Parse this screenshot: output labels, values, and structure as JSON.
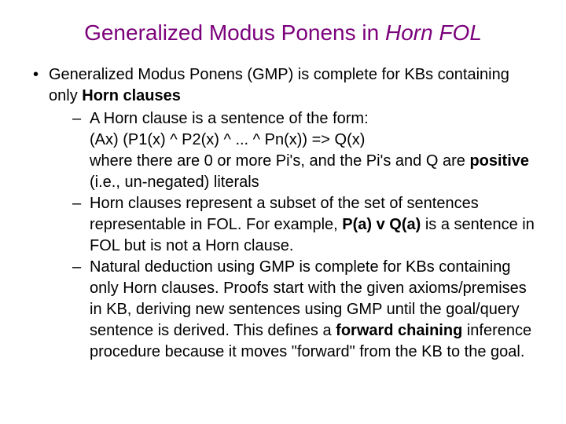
{
  "title": {
    "prefix": "Generalized Modus Ponens in ",
    "italic": "Horn FOL",
    "color": "#7b007b",
    "fontsize": 28
  },
  "body_color": "#000000",
  "body_fontsize": 20,
  "main": {
    "line1_a": "Generalized Modus Ponens (GMP) is complete for KBs containing only ",
    "line1_b": "Horn clauses"
  },
  "sub1": {
    "line1": "A Horn clause is a sentence of the form:",
    "line2": "(Ax) (P1(x) ^ P2(x) ^ ... ^ Pn(x)) => Q(x)",
    "line3_a": "where there are 0 or more Pi's, and the Pi's and Q are ",
    "line3_b": "positive ",
    "line3_c": "(i.e., un-negated) literals"
  },
  "sub2": {
    "line_a": "Horn clauses represent a subset of the set of sentences representable in FOL. For example, ",
    "line_b": "P(a) v Q(a)",
    "line_c": " is a sentence in FOL but is not a Horn clause."
  },
  "sub3": {
    "line_a": "Natural deduction using GMP is complete for KBs containing only Horn clauses. Proofs start with the given axioms/premises in KB, deriving new sentences using GMP until the goal/query sentence is derived. This defines a ",
    "line_b": "forward chaining",
    "line_c": " inference procedure because it moves \"forward\" from the KB to the goal."
  }
}
